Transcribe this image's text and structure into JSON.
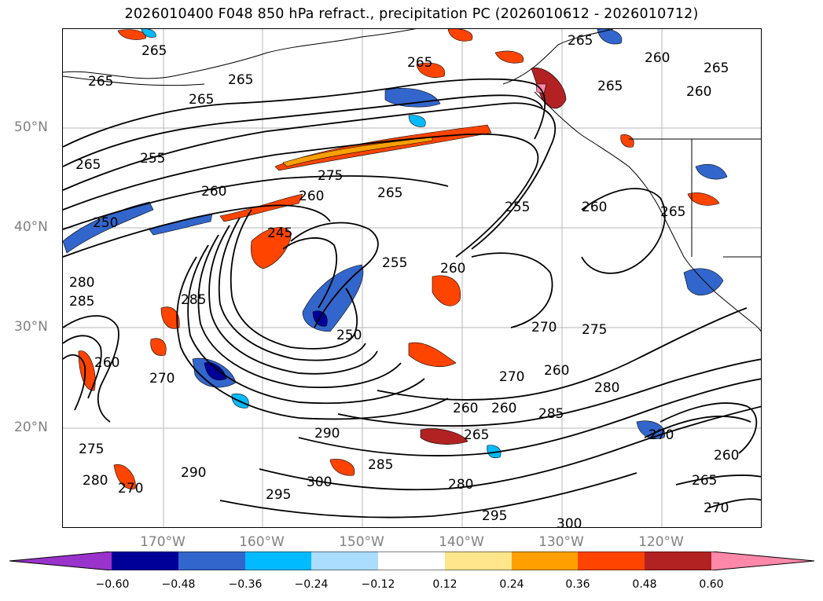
{
  "title": "2026010400 F048 850 hPa refract., precipitation PC (2026010612 - 2026010712)",
  "lat_labels": [
    "50°N",
    "40°N",
    "30°N",
    "20°N"
  ],
  "lon_labels": [
    "170°W",
    "160°W",
    "150°W",
    "140°W",
    "130°W",
    "120°W"
  ],
  "colorbar": {
    "ticks": [
      "−0.60",
      "−0.48",
      "−0.36",
      "−0.24",
      "−0.12",
      "0.12",
      "0.24",
      "0.36",
      "0.48",
      "0.60"
    ],
    "colors": [
      "#9933cc",
      "#000099",
      "#3366cc",
      "#00bbff",
      "#aaddff",
      "#ffffff",
      "#ffe68c",
      "#ffa000",
      "#ff4400",
      "#b22222",
      "#ff88aa"
    ]
  },
  "contour_labels": [
    "265",
    "265",
    "265",
    "265",
    "265",
    "265",
    "265",
    "260",
    "265",
    "260",
    "265",
    "255",
    "275",
    "265",
    "255",
    "260",
    "260",
    "250",
    "260",
    "245",
    "255",
    "260",
    "280",
    "285",
    "285",
    "250",
    "270",
    "275",
    "270",
    "260",
    "280",
    "270",
    "260",
    "260",
    "285",
    "270",
    "260",
    "265",
    "290",
    "285",
    "275",
    "280",
    "270",
    "300",
    "295",
    "280",
    "295",
    "300",
    "290",
    "265",
    "270",
    "260",
    "265"
  ]
}
